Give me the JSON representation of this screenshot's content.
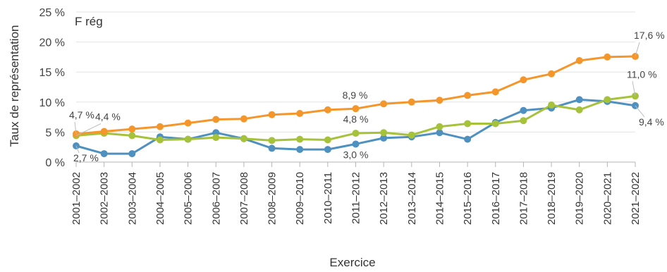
{
  "chart_data": {
    "type": "line",
    "panel_label": "F rég",
    "xlabel": "Exercice",
    "ylabel": "Taux de représentation",
    "ylim": [
      0,
      25
    ],
    "yticks": [
      0,
      5,
      10,
      15,
      20,
      25
    ],
    "ytick_labels": [
      "0 %",
      "5 %",
      "10 %",
      "15 %",
      "20 %",
      "25 %"
    ],
    "grid": true,
    "legend": "none",
    "categories": [
      "2001–2002",
      "2002–2003",
      "2003–2004",
      "2004–2005",
      "2005–2006",
      "2006–2007",
      "2007–2008",
      "2008–2009",
      "2009–2010",
      "2010–2011",
      "2011–2012",
      "2012–2013",
      "2013–2014",
      "2014–2015",
      "2015–2016",
      "2016–2017",
      "2017–2018",
      "2018–2019",
      "2019–2020",
      "2020–2021",
      "2021–2022"
    ],
    "series": [
      {
        "color": "#f5962b",
        "values": [
          4.7,
          5.1,
          5.5,
          5.9,
          6.5,
          7.1,
          7.2,
          7.9,
          8.1,
          8.7,
          8.9,
          9.7,
          10.0,
          10.3,
          11.1,
          11.7,
          13.7,
          14.7,
          16.9,
          17.5,
          17.6
        ]
      },
      {
        "color": "#a5c23a",
        "values": [
          4.4,
          4.8,
          4.4,
          3.7,
          3.8,
          4.1,
          3.9,
          3.6,
          3.8,
          3.7,
          4.8,
          4.9,
          4.5,
          5.9,
          6.4,
          6.4,
          6.9,
          9.5,
          8.7,
          10.4,
          11.0
        ]
      },
      {
        "color": "#4e90c0",
        "values": [
          2.7,
          1.4,
          1.4,
          4.2,
          3.8,
          4.9,
          3.9,
          2.3,
          2.1,
          2.1,
          3.0,
          4.0,
          4.2,
          4.9,
          3.8,
          6.6,
          8.6,
          9.0,
          10.4,
          10.1,
          9.4
        ]
      }
    ],
    "annotations": [
      {
        "text": "4,7 %",
        "series": 0,
        "index": 0
      },
      {
        "text": "17,6 %",
        "series": 0,
        "index": 20
      },
      {
        "text": "8,9 %",
        "series": 0,
        "index": 10
      },
      {
        "text": "4,4 %",
        "series": 1,
        "index": 0
      },
      {
        "text": "4,8 %",
        "series": 1,
        "index": 10
      },
      {
        "text": "11,0 %",
        "series": 1,
        "index": 20
      },
      {
        "text": "2,7 %",
        "series": 2,
        "index": 0
      },
      {
        "text": "3,0 %",
        "series": 2,
        "index": 10
      },
      {
        "text": "9,4 %",
        "series": 2,
        "index": 20
      }
    ]
  }
}
